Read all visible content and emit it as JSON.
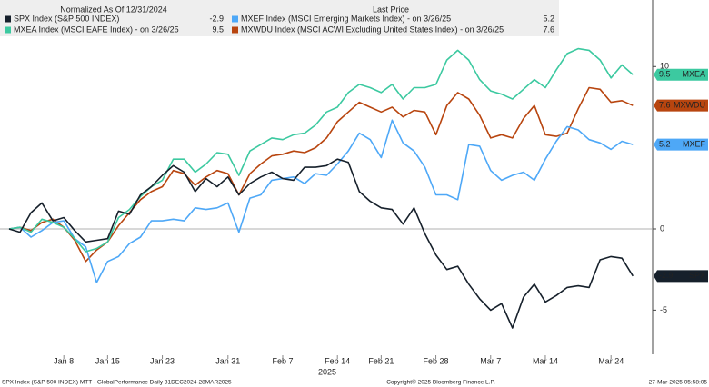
{
  "chart_data": {
    "type": "line",
    "legend_title": "Normalized As Of 12/31/2024",
    "legend_value_title": "Last Price",
    "xlabel": "2025",
    "categories": [
      null,
      null,
      null,
      null,
      null,
      "Jan 8",
      null,
      null,
      null,
      "Jan 15",
      null,
      null,
      null,
      null,
      "Jan 23",
      null,
      null,
      null,
      null,
      null,
      "Jan 31",
      null,
      null,
      null,
      null,
      "Feb 7",
      null,
      null,
      null,
      null,
      "Feb 14",
      null,
      null,
      null,
      "Feb 21",
      null,
      null,
      null,
      null,
      "Feb 28",
      null,
      null,
      null,
      null,
      "Mar 7",
      null,
      null,
      null,
      null,
      "Mar 14",
      null,
      null,
      null,
      null,
      null,
      "Mar 24",
      null,
      null
    ],
    "series": [
      {
        "name": "SPX Index (S&P 500 INDEX)",
        "tag": "SPX",
        "color": "#16202b",
        "tag_text_color": "#ffffff",
        "values": [
          0,
          -0.2,
          1.0,
          1.6,
          0.5,
          0.7,
          -0.1,
          -0.8,
          -0.7,
          -0.6,
          1.1,
          0.9,
          2.1,
          2.6,
          3.3,
          3.9,
          3.5,
          2.3,
          3.1,
          2.6,
          3.2,
          2.1,
          2.8,
          3.2,
          3.5,
          3.1,
          3.0,
          3.8,
          3.8,
          3.9,
          4.3,
          4.1,
          2.3,
          1.7,
          1.3,
          1.2,
          0.3,
          1.3,
          -0.3,
          -1.6,
          -2.5,
          -2.3,
          -3.4,
          -4.3,
          -5.0,
          -4.6,
          -6.1,
          -4.2,
          -3.4,
          -4.5,
          -4.1,
          -3.6,
          -3.5,
          -3.6,
          -1.9,
          -1.7,
          -1.8,
          -2.9
        ]
      },
      {
        "name": "MXEA Index (MSCI EAFE Index) - on 3/26/25",
        "tag": "MXEA",
        "color": "#3cc9a0",
        "tag_text_color": "#10231c",
        "values": [
          0,
          0.1,
          -0.2,
          0.6,
          0.4,
          0.1,
          -0.6,
          -1.4,
          -1.2,
          -0.8,
          0.7,
          1.2,
          2.0,
          2.6,
          3.0,
          4.3,
          4.3,
          3.5,
          4.0,
          4.7,
          4.6,
          3.3,
          4.8,
          5.2,
          5.6,
          5.5,
          5.8,
          5.9,
          6.4,
          7.2,
          7.5,
          8.4,
          8.9,
          8.7,
          8.4,
          8.9,
          8.0,
          8.7,
          8.7,
          8.9,
          10.4,
          11.0,
          10.4,
          9.2,
          8.5,
          8.3,
          8.0,
          8.6,
          9.2,
          8.7,
          9.8,
          10.8,
          11.1,
          11.0,
          10.4,
          9.3,
          10.1,
          9.5
        ]
      },
      {
        "name": "MXEF Index (MSCI Emerging Markets Index) - on 3/26/25",
        "tag": "MXEF",
        "color": "#4ea8f7",
        "tag_text_color": "#0d1a2a",
        "values": [
          0,
          0.1,
          -0.5,
          -0.1,
          0.4,
          0.5,
          -0.6,
          -1.1,
          -3.3,
          -2.0,
          -1.7,
          -0.9,
          -0.5,
          0.5,
          0.5,
          0.6,
          0.5,
          1.3,
          1.2,
          1.3,
          1.6,
          -0.2,
          1.9,
          2.1,
          3.0,
          3.1,
          3.2,
          2.8,
          3.4,
          3.3,
          4.0,
          4.8,
          5.9,
          5.5,
          4.4,
          6.7,
          5.3,
          4.8,
          3.8,
          2.1,
          2.1,
          1.8,
          5.2,
          5.1,
          3.6,
          3.0,
          3.3,
          3.5,
          3.0,
          4.3,
          5.4,
          6.3,
          6.1,
          5.5,
          5.3,
          4.9,
          5.4,
          5.2
        ]
      },
      {
        "name": "MXWDU Index (MSCI ACWI Excluding United States Index) - on 3/26/25",
        "tag": "MXWDU",
        "color": "#b8450f",
        "tag_text_color": "#ffffff",
        "values": [
          0,
          0.1,
          -0.1,
          0.4,
          0.6,
          0.1,
          -0.7,
          -2.0,
          -1.3,
          -0.8,
          0.2,
          1.0,
          1.8,
          2.3,
          2.6,
          3.6,
          3.4,
          2.7,
          3.2,
          3.6,
          3.4,
          2.1,
          3.4,
          4.0,
          4.5,
          4.6,
          4.8,
          4.7,
          5.0,
          5.6,
          6.6,
          7.2,
          7.8,
          7.5,
          7.2,
          7.5,
          6.9,
          7.3,
          7.2,
          5.8,
          7.6,
          8.4,
          8.0,
          7.0,
          5.6,
          5.8,
          5.6,
          6.8,
          7.6,
          5.8,
          5.7,
          5.9,
          7.4,
          8.7,
          8.6,
          7.8,
          7.9,
          7.6
        ]
      }
    ],
    "ylim": [
      -8,
      14.1
    ],
    "yticks": [
      -5,
      0,
      10
    ],
    "reference_line": 0,
    "footer": {
      "left": "SPX Index (S&P 500 INDEX) MTT - GlobalPerformance  Daily 31DEC2024-28MAR2025",
      "center": "Copyright© 2025 Bloomberg Finance L.P.",
      "right": "27-Mar-2025 05:58:05"
    }
  }
}
